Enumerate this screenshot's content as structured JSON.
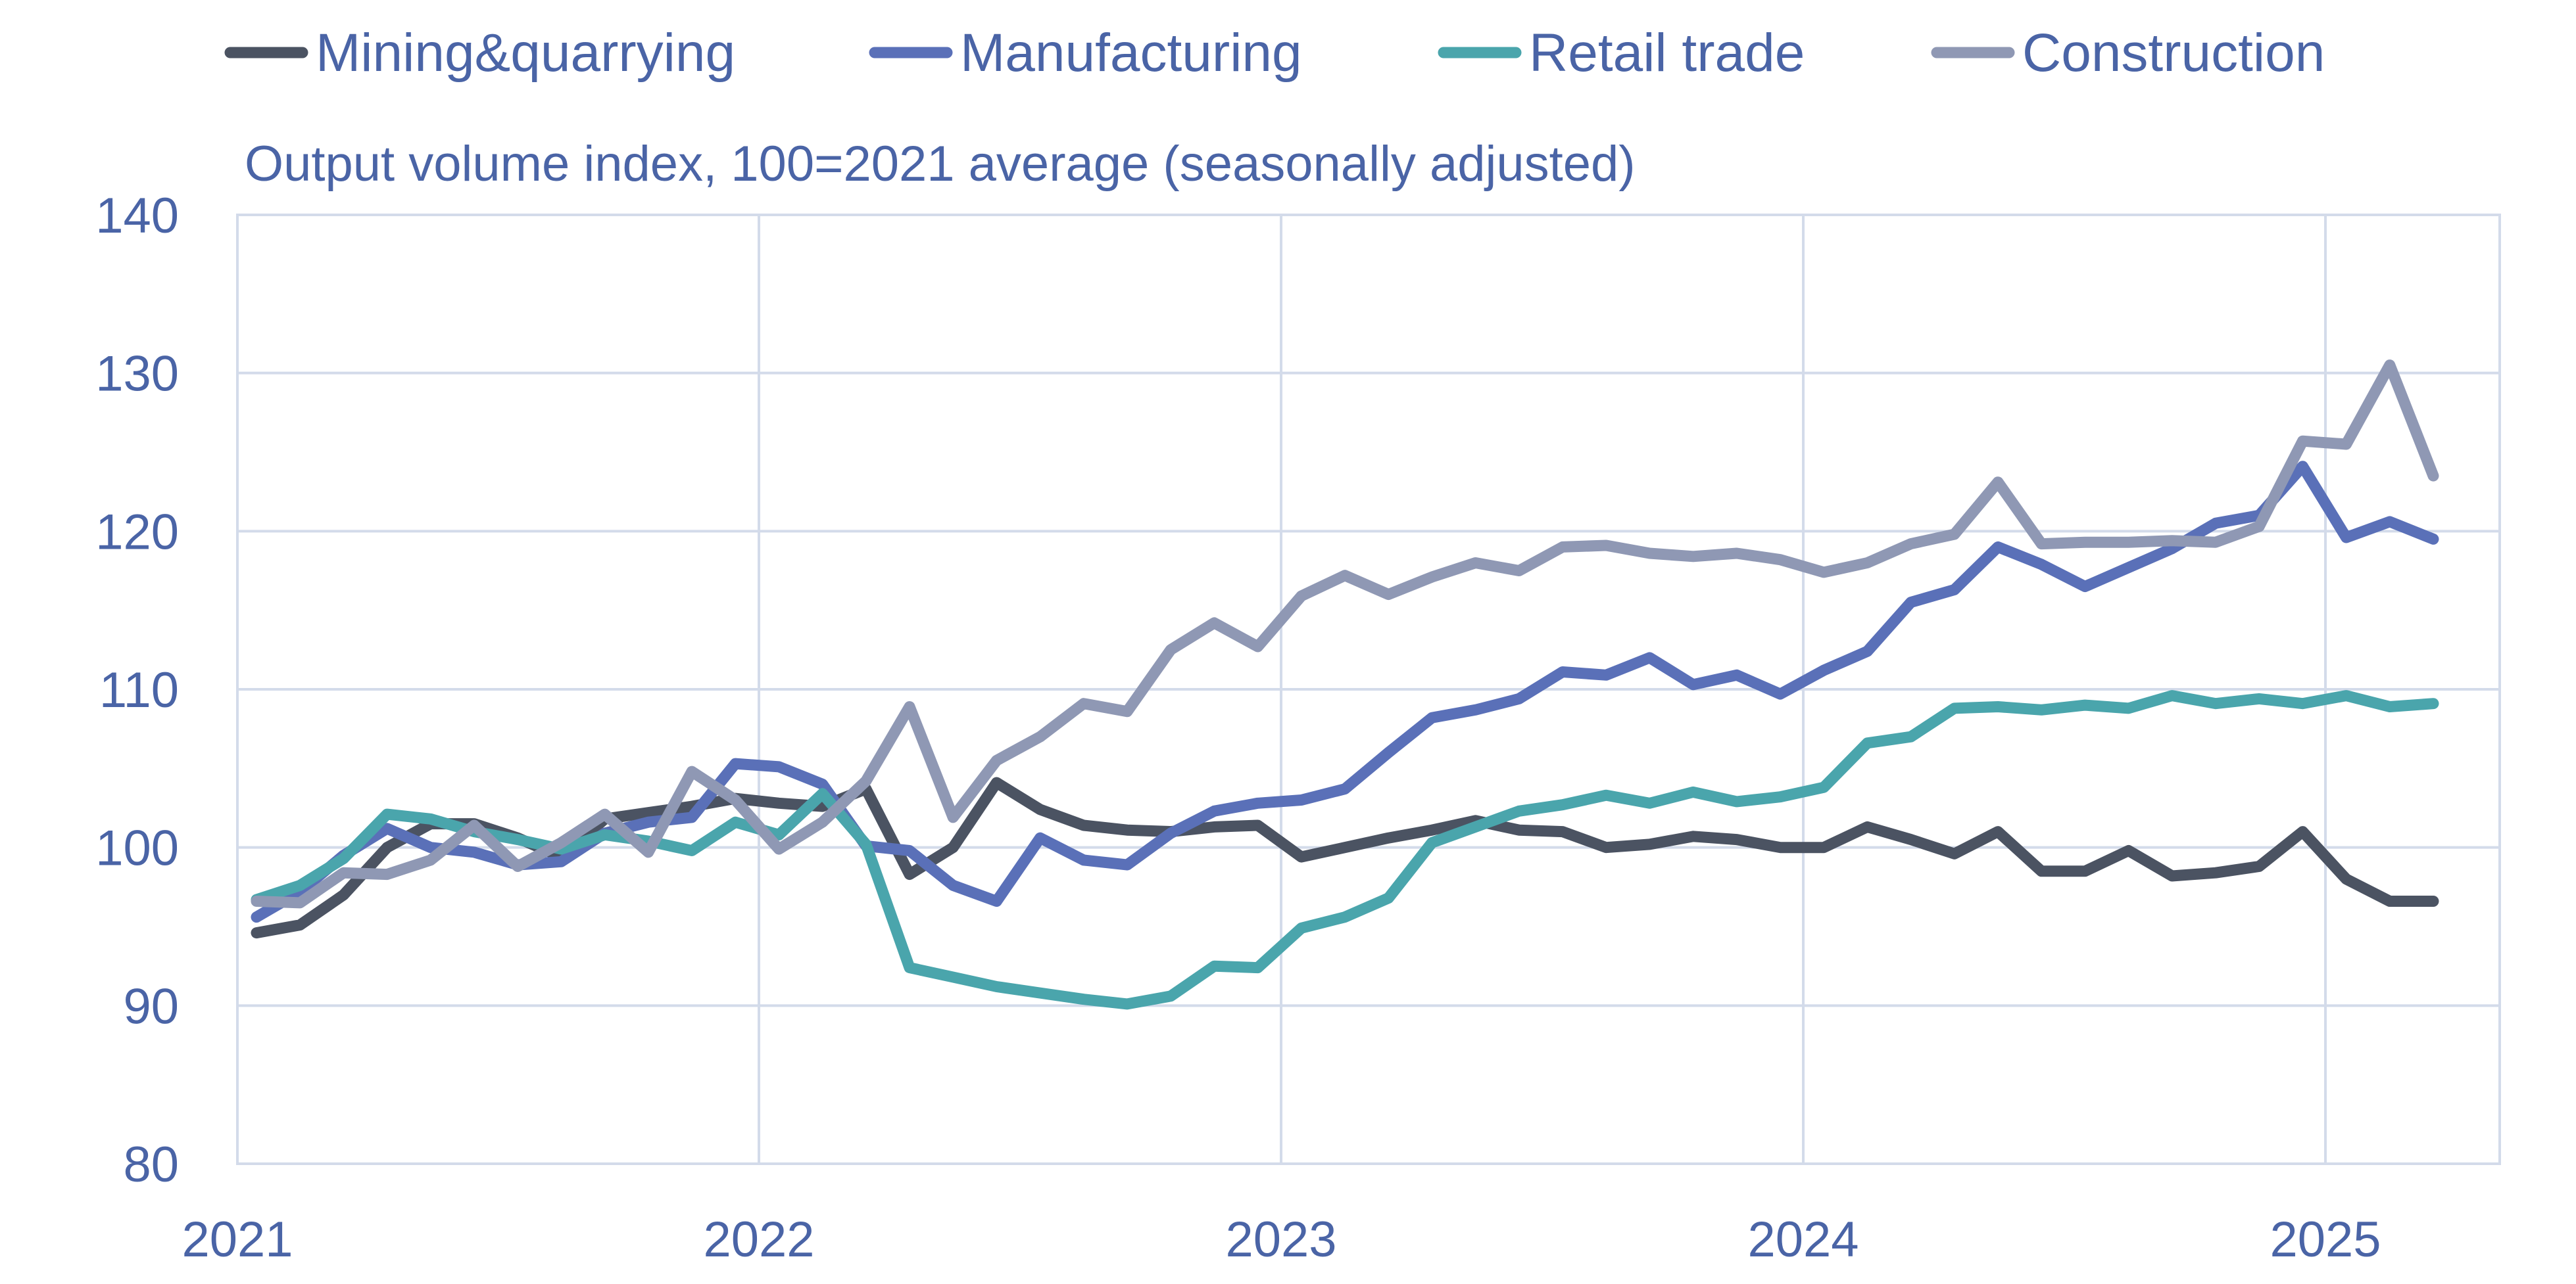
{
  "chart_data": {
    "type": "line",
    "subtitle": "Output volume index, 100=2021 average (seasonally adjusted)",
    "xlabel": "",
    "ylabel": "",
    "ylim": [
      80,
      140
    ],
    "yticks": [
      80,
      90,
      100,
      110,
      120,
      130,
      140
    ],
    "xticks": [
      "2021",
      "2022",
      "2023",
      "2024",
      "2025"
    ],
    "xrange_months": [
      0,
      51
    ],
    "grid": true,
    "legend_position": "top",
    "x_start": "2021-01",
    "series": [
      {
        "name": "Mining&quarrying",
        "color": "#4b5362",
        "values": [
          94.6,
          95.1,
          97.0,
          100.0,
          101.5,
          101.5,
          100.6,
          99.4,
          101.8,
          102.2,
          102.6,
          103.1,
          102.8,
          102.6,
          103.7,
          98.3,
          100.0,
          104.1,
          102.4,
          101.4,
          101.1,
          101.0,
          101.3,
          101.4,
          99.4,
          100.0,
          100.6,
          101.1,
          101.7,
          101.1,
          101.0,
          100.0,
          100.2,
          100.7,
          100.5,
          100.0,
          100.0,
          101.3,
          100.5,
          99.6,
          101.0,
          98.5,
          98.5,
          99.8,
          98.2,
          98.4,
          98.8,
          101.0,
          98.0,
          96.6,
          96.6
        ]
      },
      {
        "name": "Manufacturing",
        "color": "#5a70b8",
        "values": [
          95.6,
          97.2,
          99.5,
          101.2,
          100.0,
          99.7,
          98.9,
          99.1,
          100.9,
          101.6,
          101.9,
          105.3,
          105.1,
          104.0,
          100.1,
          99.8,
          97.6,
          96.6,
          100.6,
          99.2,
          98.9,
          100.9,
          102.3,
          102.8,
          103.0,
          103.7,
          106.0,
          108.2,
          108.7,
          109.4,
          111.1,
          110.9,
          112.0,
          110.3,
          110.9,
          109.7,
          111.2,
          112.4,
          115.5,
          116.3,
          119.0,
          117.9,
          116.5,
          117.7,
          118.9,
          120.5,
          121.0,
          124.1,
          119.6,
          120.6,
          119.5
        ]
      },
      {
        "name": "Retail trade",
        "color": "#4aa5ac",
        "values": [
          96.7,
          97.6,
          99.3,
          102.1,
          101.8,
          101.0,
          100.5,
          99.9,
          100.8,
          100.4,
          99.8,
          101.6,
          100.8,
          103.4,
          100.2,
          92.4,
          91.8,
          91.2,
          90.8,
          90.4,
          90.1,
          90.6,
          92.5,
          92.4,
          94.9,
          95.6,
          96.8,
          100.3,
          101.3,
          102.3,
          102.7,
          103.3,
          102.8,
          103.5,
          102.9,
          103.2,
          103.8,
          106.6,
          107.0,
          108.8,
          108.9,
          108.7,
          109.0,
          108.8,
          109.6,
          109.1,
          109.4,
          109.1,
          109.6,
          108.9,
          109.1
        ]
      },
      {
        "name": "Construction",
        "color": "#8f98b4",
        "values": [
          96.6,
          96.5,
          98.4,
          98.3,
          99.2,
          101.4,
          98.8,
          100.3,
          102.1,
          99.7,
          104.8,
          103.0,
          99.9,
          101.6,
          104.2,
          108.9,
          101.9,
          105.5,
          107.0,
          109.1,
          108.6,
          112.5,
          114.2,
          112.7,
          115.9,
          117.2,
          116.0,
          117.1,
          118.0,
          117.5,
          119.0,
          119.1,
          118.6,
          118.4,
          118.6,
          118.2,
          117.4,
          118.0,
          119.2,
          119.8,
          123.1,
          119.2,
          119.3,
          119.3,
          119.4,
          119.3,
          120.3,
          125.7,
          125.5,
          130.5,
          123.5
        ]
      }
    ]
  }
}
